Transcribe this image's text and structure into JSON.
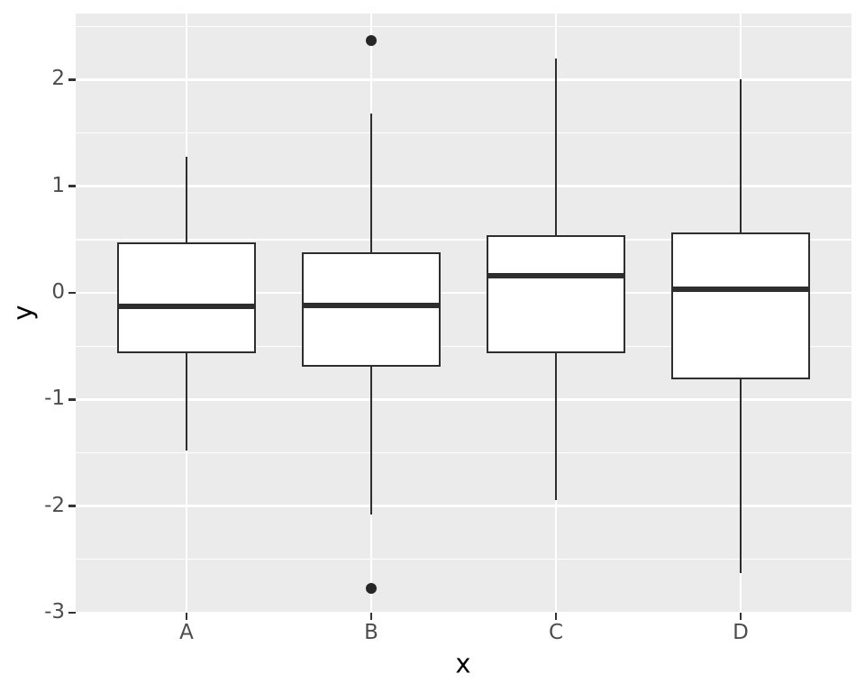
{
  "chart_data": {
    "type": "boxplot",
    "title": "",
    "xlabel": "x",
    "ylabel": "y",
    "categories": [
      "A",
      "B",
      "C",
      "D"
    ],
    "y_major_ticks": [
      2,
      1,
      0,
      -1,
      -2,
      -3
    ],
    "y_tick_labels": [
      "2",
      "1",
      "0",
      "-1",
      "-2",
      "-3"
    ],
    "y_minor_ticks": [
      2.5,
      1.5,
      0.5,
      -0.5,
      -1.5,
      -2.5
    ],
    "ylim": [
      -3.0,
      2.62
    ],
    "grid": true,
    "legend": "none",
    "boxes": [
      {
        "category": "A",
        "whisker_low": -1.48,
        "q1": -0.57,
        "median": -0.13,
        "q3": 0.47,
        "whisker_high": 1.28,
        "outliers": []
      },
      {
        "category": "B",
        "whisker_low": -2.08,
        "q1": -0.69,
        "median": -0.12,
        "q3": 0.38,
        "whisker_high": 1.68,
        "outliers": [
          2.37,
          -2.77
        ]
      },
      {
        "category": "C",
        "whisker_low": -1.94,
        "q1": -0.57,
        "median": 0.16,
        "q3": 0.54,
        "whisker_high": 2.2,
        "outliers": []
      },
      {
        "category": "D",
        "whisker_low": -2.63,
        "q1": -0.81,
        "median": 0.03,
        "q3": 0.57,
        "whisker_high": 2.0,
        "outliers": []
      }
    ],
    "colors": {
      "panel_bg": "#EBEBEB",
      "grid": "#FFFFFF",
      "box_stroke": "#2E2E2E",
      "box_fill": "#FFFFFF",
      "outlier": "#262626",
      "tick_label": "#4D4D4D",
      "tick_mark": "#333333",
      "axis_title": "#000000"
    }
  }
}
